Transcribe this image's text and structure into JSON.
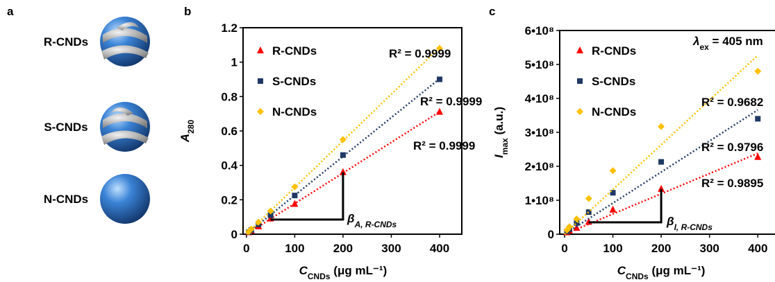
{
  "panel_a": {
    "label": "a",
    "items": [
      "R-CNDs",
      "S-CNDs",
      "N-CNDs"
    ]
  },
  "chart_data": [
    {
      "type": "scatter",
      "panel_label": "b",
      "xlabel": {
        "symbol": "C",
        "subscript": "CNDs",
        "unit": " (μg mL⁻¹)"
      },
      "ylabel": {
        "symbol": "A",
        "subscript": "280"
      },
      "x": [
        5,
        10,
        25,
        50,
        100,
        200,
        400
      ],
      "xlim": [
        -7,
        446
      ],
      "ylim": [
        0,
        1.2
      ],
      "xticks": [
        0,
        100,
        200,
        300,
        400
      ],
      "yticks": [
        0,
        0.2,
        0.4,
        0.6,
        0.8,
        1,
        1.2
      ],
      "series": [
        {
          "name": "R-CNDs",
          "color": "#ff0000",
          "marker": "triangle",
          "values": [
            0.01,
            0.02,
            0.045,
            0.09,
            0.175,
            0.36,
            0.71
          ]
        },
        {
          "name": "S-CNDs",
          "color": "#1f3864",
          "marker": "square",
          "values": [
            0.012,
            0.025,
            0.057,
            0.11,
            0.225,
            0.46,
            0.9
          ]
        },
        {
          "name": "N-CNDs",
          "color": "#ffc000",
          "marker": "diamond",
          "values": [
            0.015,
            0.03,
            0.07,
            0.135,
            0.275,
            0.55,
            1.08
          ]
        }
      ],
      "fit_labels": [
        "R² = 0.9999",
        "R² = 0.9999",
        "R² = 0.9999"
      ],
      "annotation": {
        "symbol": "β",
        "subscript": "A, R-CNDs"
      }
    },
    {
      "type": "scatter",
      "panel_label": "c",
      "xlabel": {
        "symbol": "C",
        "subscript": "CNDs",
        "unit": " (μg mL⁻¹)"
      },
      "ylabel": {
        "symbol": "I",
        "subscript": "max",
        "unit": " (a.u.)"
      },
      "condition": {
        "symbol": "λ",
        "subscript": "ex",
        "text": " = 405 nm"
      },
      "x": [
        5,
        10,
        25,
        50,
        100,
        200,
        400
      ],
      "xlim": [
        -10,
        460
      ],
      "ylim": [
        0,
        600000000
      ],
      "xticks": [
        0,
        100,
        200,
        300,
        400
      ],
      "yticks": [
        0,
        {
          "value": 100000000,
          "label": "1•10⁸"
        },
        {
          "value": 200000000,
          "label": "2•10⁸"
        },
        {
          "value": 300000000,
          "label": "3•10⁸"
        },
        {
          "value": 400000000,
          "label": "4•10⁸"
        },
        {
          "value": 500000000,
          "label": "5•10⁸"
        },
        {
          "value": 600000000,
          "label": "6•10⁸"
        }
      ],
      "series": [
        {
          "name": "R-CNDs",
          "color": "#ff0000",
          "marker": "triangle",
          "values": [
            5000000,
            10000000,
            18000000,
            36000000,
            72000000,
            133000000,
            227000000
          ]
        },
        {
          "name": "S-CNDs",
          "color": "#1f3864",
          "marker": "square",
          "values": [
            8000000,
            15000000,
            33000000,
            65000000,
            122000000,
            213000000,
            340000000
          ]
        },
        {
          "name": "N-CNDs",
          "color": "#ffc000",
          "marker": "diamond",
          "values": [
            12000000,
            22000000,
            45000000,
            105000000,
            187000000,
            317000000,
            480000000
          ]
        }
      ],
      "fit_labels": [
        "R² = 0.9895",
        "R² = 0.9796",
        "R² = 0.9682"
      ],
      "annotation": {
        "symbol": "β",
        "subscript": "I, R-CNDs"
      }
    }
  ]
}
